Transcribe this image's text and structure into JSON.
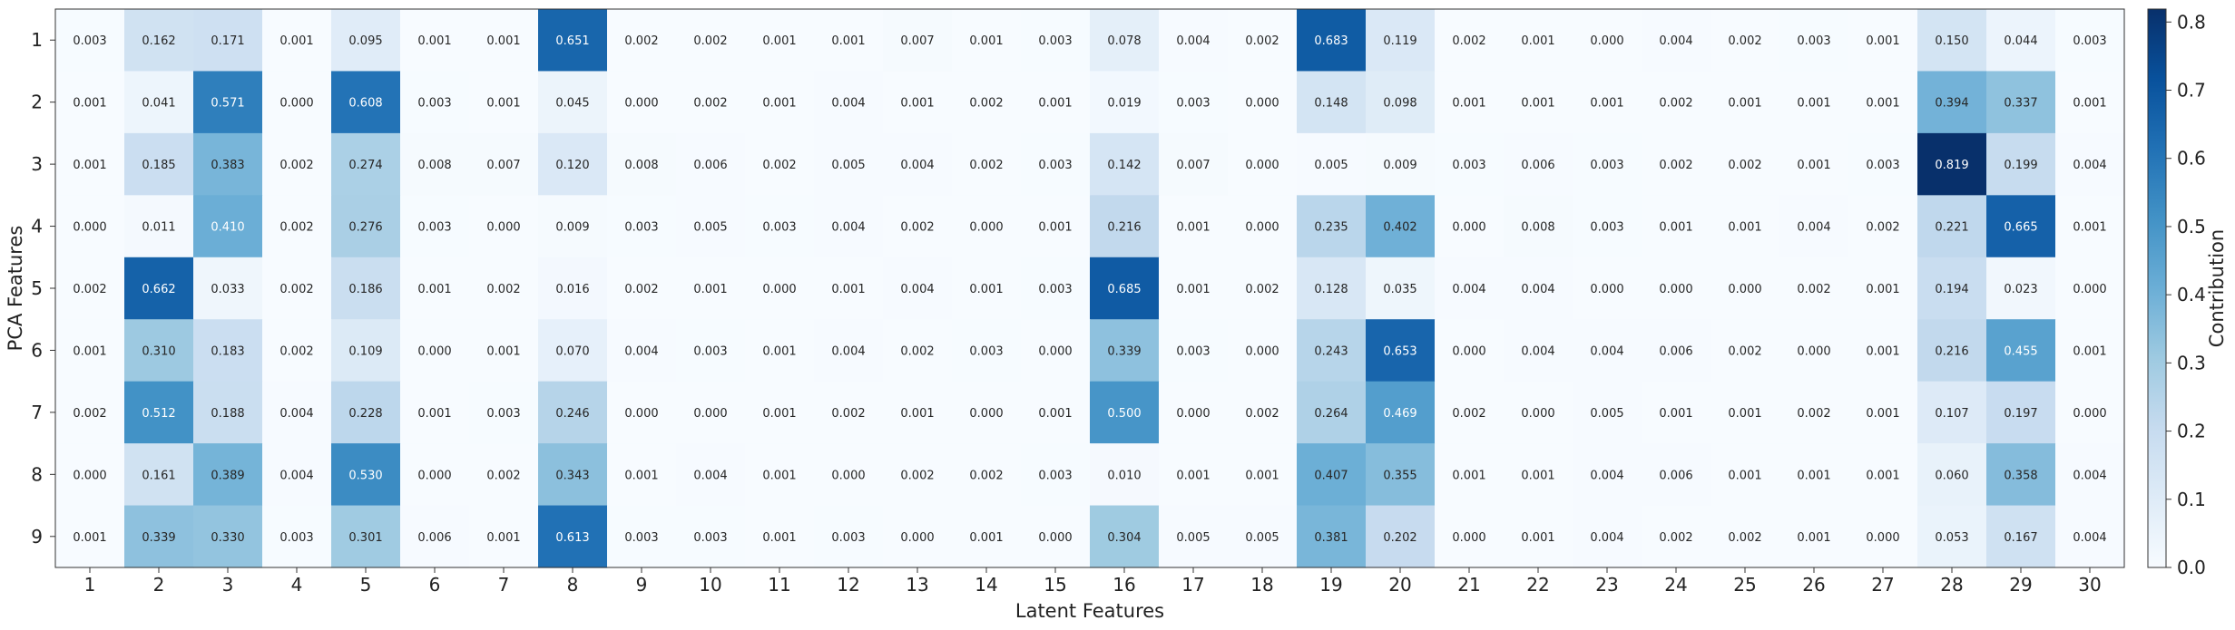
{
  "chart_data": {
    "type": "heatmap",
    "title": "",
    "xlabel": "Latent Features",
    "ylabel": "PCA Features",
    "x_categories": [
      "1",
      "2",
      "3",
      "4",
      "5",
      "6",
      "7",
      "8",
      "9",
      "10",
      "11",
      "12",
      "13",
      "14",
      "15",
      "16",
      "17",
      "18",
      "19",
      "20",
      "21",
      "22",
      "23",
      "24",
      "25",
      "26",
      "27",
      "28",
      "29",
      "30"
    ],
    "y_categories": [
      "1",
      "2",
      "3",
      "4",
      "5",
      "6",
      "7",
      "8",
      "9"
    ],
    "values": [
      [
        0.003,
        0.162,
        0.171,
        0.001,
        0.095,
        0.001,
        0.001,
        0.651,
        0.002,
        0.002,
        0.001,
        0.001,
        0.007,
        0.001,
        0.003,
        0.078,
        0.004,
        0.002,
        0.683,
        0.119,
        0.002,
        0.001,
        0.0,
        0.004,
        0.002,
        0.003,
        0.001,
        0.15,
        0.044,
        0.003
      ],
      [
        0.001,
        0.041,
        0.571,
        0.0,
        0.608,
        0.003,
        0.001,
        0.045,
        0.0,
        0.002,
        0.001,
        0.004,
        0.001,
        0.002,
        0.001,
        0.019,
        0.003,
        0.0,
        0.148,
        0.098,
        0.001,
        0.001,
        0.001,
        0.002,
        0.001,
        0.001,
        0.001,
        0.394,
        0.337,
        0.001
      ],
      [
        0.001,
        0.185,
        0.383,
        0.002,
        0.274,
        0.008,
        0.007,
        0.12,
        0.008,
        0.006,
        0.002,
        0.005,
        0.004,
        0.002,
        0.003,
        0.142,
        0.007,
        0.0,
        0.005,
        0.009,
        0.003,
        0.006,
        0.003,
        0.002,
        0.002,
        0.001,
        0.003,
        0.819,
        0.199,
        0.004
      ],
      [
        0.0,
        0.011,
        0.41,
        0.002,
        0.276,
        0.003,
        0.0,
        0.009,
        0.003,
        0.005,
        0.003,
        0.004,
        0.002,
        0.0,
        0.001,
        0.216,
        0.001,
        0.0,
        0.235,
        0.402,
        0.0,
        0.008,
        0.003,
        0.001,
        0.001,
        0.004,
        0.002,
        0.221,
        0.665,
        0.001
      ],
      [
        0.002,
        0.662,
        0.033,
        0.002,
        0.186,
        0.001,
        0.002,
        0.016,
        0.002,
        0.001,
        0.0,
        0.001,
        0.004,
        0.001,
        0.003,
        0.685,
        0.001,
        0.002,
        0.128,
        0.035,
        0.004,
        0.004,
        0.0,
        0.0,
        0.0,
        0.002,
        0.001,
        0.194,
        0.023,
        0.0
      ],
      [
        0.001,
        0.31,
        0.183,
        0.002,
        0.109,
        0.0,
        0.001,
        0.07,
        0.004,
        0.003,
        0.001,
        0.004,
        0.002,
        0.003,
        0.0,
        0.339,
        0.003,
        0.0,
        0.243,
        0.653,
        0.0,
        0.004,
        0.004,
        0.006,
        0.002,
        0.0,
        0.001,
        0.216,
        0.455,
        0.001
      ],
      [
        0.002,
        0.512,
        0.188,
        0.004,
        0.228,
        0.001,
        0.003,
        0.246,
        0.0,
        0.0,
        0.001,
        0.002,
        0.001,
        0.0,
        0.001,
        0.5,
        0.0,
        0.002,
        0.264,
        0.469,
        0.002,
        0.0,
        0.005,
        0.001,
        0.001,
        0.002,
        0.001,
        0.107,
        0.197,
        0.0
      ],
      [
        0.0,
        0.161,
        0.389,
        0.004,
        0.53,
        0.0,
        0.002,
        0.343,
        0.001,
        0.004,
        0.001,
        0.0,
        0.002,
        0.002,
        0.003,
        0.01,
        0.001,
        0.001,
        0.407,
        0.355,
        0.001,
        0.001,
        0.004,
        0.006,
        0.001,
        0.001,
        0.001,
        0.06,
        0.358,
        0.004
      ],
      [
        0.001,
        0.339,
        0.33,
        0.003,
        0.301,
        0.006,
        0.001,
        0.613,
        0.003,
        0.003,
        0.001,
        0.003,
        0.0,
        0.001,
        0.0,
        0.304,
        0.005,
        0.005,
        0.381,
        0.202,
        0.0,
        0.001,
        0.004,
        0.002,
        0.002,
        0.001,
        0.0,
        0.053,
        0.167,
        0.004
      ]
    ],
    "value_format": "0.000",
    "colormap": "Blues",
    "color_range": [
      0.0,
      0.819
    ],
    "colorbar": {
      "label": "Contribution",
      "ticks": [
        "0.0",
        "0.1",
        "0.2",
        "0.3",
        "0.4",
        "0.5",
        "0.6",
        "0.7",
        "0.8"
      ]
    },
    "grid": false
  }
}
